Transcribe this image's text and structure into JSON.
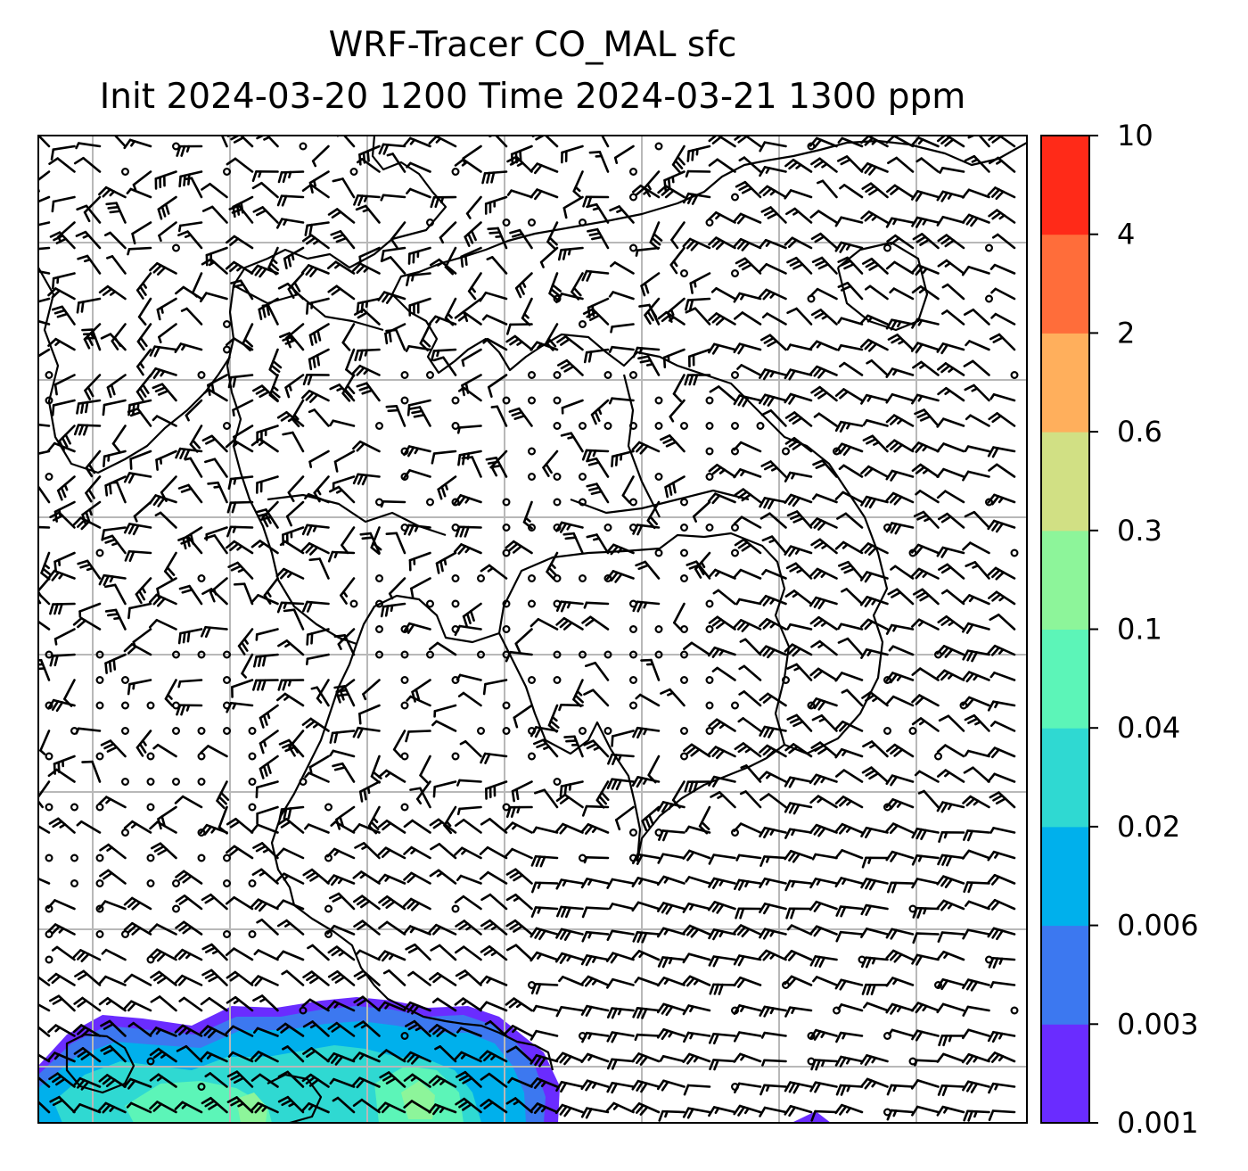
{
  "title": {
    "line1": "WRF-Tracer CO_MAL sfc",
    "line2": "Init 2024-03-20 1200 Time 2024-03-21 1300 ppm"
  },
  "chart_data": {
    "type": "heatmap",
    "title": "WRF-Tracer CO_MAL sfc",
    "subtitle": "Init 2024-03-20 1200 Time 2024-03-21 1300 ppm",
    "colorbar": {
      "levels": [
        "0.001",
        "0.003",
        "0.006",
        "0.02",
        "0.04",
        "0.1",
        "0.3",
        "0.6",
        "2",
        "4",
        "10"
      ],
      "colors": [
        "#6a2cff",
        "#3c78f0",
        "#00b0ec",
        "#2fd9d2",
        "#5cf5b8",
        "#8df59a",
        "#d1e084",
        "#ffaf5c",
        "#ff6d3a",
        "#ff2a18"
      ]
    },
    "plume": {
      "location": "bottom-left",
      "min_level": "0.001",
      "max_level": "0.1"
    },
    "overlays": [
      "coastlines",
      "wind-barbs",
      "lat-lon-grid"
    ],
    "grid": true
  }
}
